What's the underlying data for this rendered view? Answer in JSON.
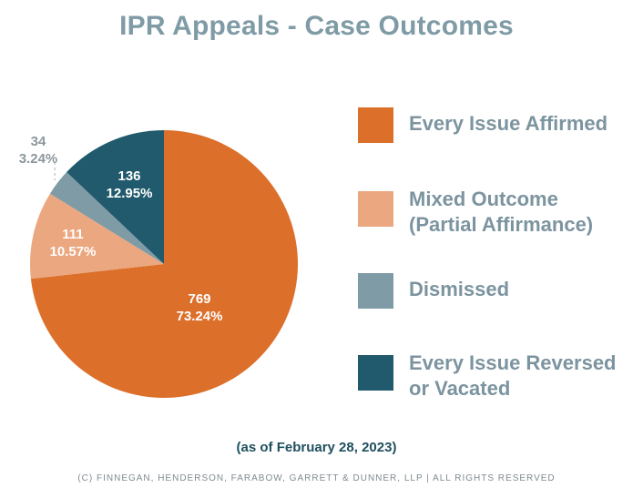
{
  "title": "IPR Appeals - Case Outcomes",
  "date_note": "(as of February 28, 2023)",
  "copyright": "(c) Finnegan, Henderson, Farabow, Garrett & Dunner, LLP | All Rights Reserved",
  "colors": {
    "title": "#7f9ba6",
    "affirmed": "#dc6f2a",
    "mixed": "#eba77f",
    "dismissed": "#7f9ba6",
    "reversed": "#215a6d"
  },
  "legend": [
    {
      "lines": [
        "Every Issue Affirmed"
      ],
      "color": "#dc6f2a"
    },
    {
      "lines": [
        "Mixed Outcome",
        "(Partial Affirmance)"
      ],
      "color": "#eba77f"
    },
    {
      "lines": [
        "Dismissed"
      ],
      "color": "#7f9ba6"
    },
    {
      "lines": [
        "Every Issue Reversed",
        "or Vacated"
      ],
      "color": "#215a6d"
    }
  ],
  "chart_data": {
    "type": "pie",
    "title": "IPR Appeals - Case Outcomes",
    "start": "12 o'clock",
    "direction": "clockwise",
    "slices": [
      {
        "label": "Every Issue Affirmed",
        "count": 769,
        "percent": "73.24%",
        "color": "#dc6f2a",
        "label_color": "#ffffff"
      },
      {
        "label": "Mixed Outcome (Partial Affirmance)",
        "count": 111,
        "percent": "10.57%",
        "color": "#eba77f",
        "label_color": "#ffffff"
      },
      {
        "label": "Dismissed",
        "count": 34,
        "percent": "3.24%",
        "color": "#7f9ba6",
        "label_color": "#8c979c",
        "label_outside": true
      },
      {
        "label": "Every Issue Reversed or Vacated",
        "count": 136,
        "percent": "12.95%",
        "color": "#215a6d",
        "label_color": "#ffffff"
      }
    ]
  }
}
